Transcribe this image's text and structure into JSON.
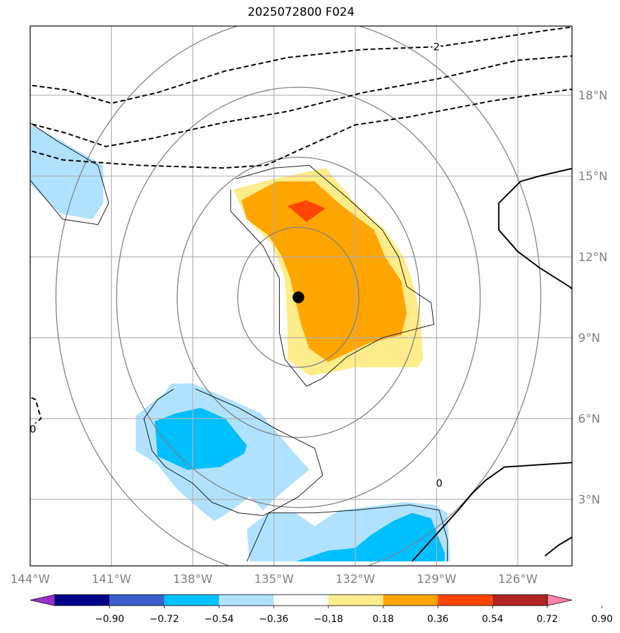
{
  "title": "2025072800 F024",
  "chart_data": {
    "type": "contour-map",
    "title": "2025072800 F024",
    "lon_range": [
      -144,
      -124
    ],
    "lat_range": [
      0.5,
      20.5
    ],
    "x_ticks": [
      {
        "value": -144,
        "label": "144°W"
      },
      {
        "value": -141,
        "label": "141°W"
      },
      {
        "value": -138,
        "label": "138°W"
      },
      {
        "value": -135,
        "label": "135°W"
      },
      {
        "value": -132,
        "label": "132°W"
      },
      {
        "value": -129,
        "label": "129°W"
      },
      {
        "value": -126,
        "label": "126°W"
      }
    ],
    "y_ticks": [
      {
        "value": 3,
        "label": "3°N"
      },
      {
        "value": 6,
        "label": "6°N"
      },
      {
        "value": 9,
        "label": "9°N"
      },
      {
        "value": 12,
        "label": "12°N"
      },
      {
        "value": 15,
        "label": "15°N"
      },
      {
        "value": 18,
        "label": "18°N"
      }
    ],
    "grid": true,
    "colorbar": {
      "placement": "bottom",
      "levels": [
        -0.9,
        -0.72,
        -0.54,
        -0.36,
        -0.18,
        0.18,
        0.36,
        0.54,
        0.72,
        0.9
      ],
      "tick_labels": [
        "−0.90",
        "−0.72",
        "−0.54",
        "−0.36",
        "−0.18",
        "0.18",
        "0.36",
        "0.54",
        "0.72",
        "0.90"
      ],
      "colors": [
        "#9932cc",
        "#00008b",
        "#3a5fcd",
        "#00bfff",
        "#b0e2ff",
        "#ffffff",
        "#ffec8b",
        "#ffa500",
        "#ff4500",
        "#b22222",
        "#ff82ab"
      ],
      "extend": "both"
    },
    "center_marker": {
      "lon": -134.1,
      "lat": 10.5
    },
    "range_rings_deg": [
      2.5,
      5,
      7.5,
      10
    ],
    "contour_labels": [
      {
        "text": "2",
        "lon": -129.0,
        "lat": 19.8
      },
      {
        "text": "0",
        "lon": -128.9,
        "lat": 3.6
      },
      {
        "text": "0",
        "lon": -143.9,
        "lat": 5.6
      }
    ],
    "shaded_regions": [
      {
        "level": 0.18,
        "color": "#ffec8b",
        "pts": [
          [
            -135.0,
            14.9
          ],
          [
            -133.1,
            15.3
          ],
          [
            -132.0,
            14.0
          ],
          [
            -130.9,
            13.0
          ],
          [
            -130.2,
            12.0
          ],
          [
            -129.9,
            11.1
          ],
          [
            -129.6,
            9.9
          ],
          [
            -129.5,
            8.2
          ],
          [
            -129.7,
            7.9
          ],
          [
            -132.0,
            7.9
          ],
          [
            -133.0,
            7.7
          ],
          [
            -133.7,
            7.6
          ],
          [
            -134.5,
            8.2
          ],
          [
            -134.5,
            9.5
          ],
          [
            -134.6,
            11.2
          ],
          [
            -135.1,
            12.5
          ],
          [
            -136.0,
            13.4
          ],
          [
            -136.5,
            14.5
          ]
        ]
      },
      {
        "level": 0.36,
        "color": "#ffa500",
        "pts": [
          [
            -134.9,
            14.8
          ],
          [
            -133.5,
            14.8
          ],
          [
            -132.5,
            13.9
          ],
          [
            -131.3,
            13.0
          ],
          [
            -130.9,
            12.0
          ],
          [
            -130.3,
            11.1
          ],
          [
            -130.1,
            9.9
          ],
          [
            -130.3,
            9.1
          ],
          [
            -131.5,
            8.8
          ],
          [
            -133.0,
            8.1
          ],
          [
            -133.7,
            8.6
          ],
          [
            -134.0,
            9.5
          ],
          [
            -134.4,
            11.2
          ],
          [
            -134.7,
            12.0
          ],
          [
            -135.2,
            12.8
          ],
          [
            -136.0,
            13.4
          ],
          [
            -136.2,
            14.1
          ]
        ]
      },
      {
        "level": 0.54,
        "color": "#ff4500",
        "pts": [
          [
            -134.5,
            13.9
          ],
          [
            -133.8,
            14.1
          ],
          [
            -133.1,
            13.8
          ],
          [
            -133.8,
            13.3
          ]
        ]
      },
      {
        "level": -0.18,
        "color": "#b0e2ff",
        "pts": [
          [
            -144.2,
            17.0
          ],
          [
            -143.2,
            16.5
          ],
          [
            -141.3,
            15.4
          ],
          [
            -141.3,
            14.0
          ],
          [
            -141.7,
            13.4
          ],
          [
            -142.9,
            13.6
          ],
          [
            -144.2,
            14.9
          ]
        ]
      },
      {
        "level": -0.18,
        "color": "#b0e2ff",
        "pts": [
          [
            -138.0,
            7.3
          ],
          [
            -136.6,
            6.7
          ],
          [
            -135.5,
            6.2
          ],
          [
            -134.4,
            4.9
          ],
          [
            -133.7,
            4.1
          ],
          [
            -134.3,
            3.6
          ],
          [
            -135.0,
            3.0
          ],
          [
            -135.4,
            2.6
          ],
          [
            -135.9,
            3.1
          ],
          [
            -136.7,
            2.5
          ],
          [
            -137.2,
            2.2
          ],
          [
            -137.7,
            2.6
          ],
          [
            -138.6,
            3.4
          ],
          [
            -139.3,
            4.3
          ],
          [
            -140.1,
            4.8
          ],
          [
            -140.1,
            6.1
          ],
          [
            -139.0,
            7.0
          ],
          [
            -138.8,
            7.3
          ]
        ]
      },
      {
        "level": -0.36,
        "color": "#00bfff",
        "pts": [
          [
            -137.7,
            6.4
          ],
          [
            -136.8,
            6.0
          ],
          [
            -136.0,
            5.0
          ],
          [
            -136.1,
            4.7
          ],
          [
            -137.0,
            4.2
          ],
          [
            -138.2,
            4.1
          ],
          [
            -139.3,
            4.6
          ],
          [
            -139.4,
            5.9
          ],
          [
            -138.6,
            6.2
          ]
        ]
      },
      {
        "level": -0.18,
        "color": "#b0e2ff",
        "pts": [
          [
            -135.2,
            2.5
          ],
          [
            -134.2,
            2.5
          ],
          [
            -133.5,
            2.0
          ],
          [
            -132.6,
            2.6
          ],
          [
            -131.7,
            2.7
          ],
          [
            -130.2,
            2.9
          ],
          [
            -129.1,
            2.8
          ],
          [
            -128.6,
            2.5
          ],
          [
            -128.5,
            0.7
          ],
          [
            -135.9,
            0.7
          ],
          [
            -136.0,
            1.9
          ]
        ]
      },
      {
        "level": -0.36,
        "color": "#00bfff",
        "pts": [
          [
            -129.9,
            2.5
          ],
          [
            -129.2,
            2.3
          ],
          [
            -128.7,
            1.0
          ],
          [
            -128.7,
            0.7
          ],
          [
            -134.2,
            0.7
          ],
          [
            -133.0,
            1.1
          ],
          [
            -132.0,
            1.2
          ],
          [
            -131.4,
            1.7
          ],
          [
            -130.6,
            2.2
          ]
        ]
      }
    ],
    "contours_thin": [
      [
        [
          -144.2,
          17.1
        ],
        [
          -143.0,
          16.3
        ],
        [
          -141.5,
          15.4
        ],
        [
          -141.1,
          14.0
        ],
        [
          -141.5,
          13.2
        ],
        [
          -142.8,
          13.4
        ],
        [
          -144.2,
          15.1
        ]
      ],
      [
        [
          -136.4,
          14.9
        ],
        [
          -135.0,
          15.3
        ],
        [
          -133.7,
          15.4
        ],
        [
          -132.3,
          14.2
        ],
        [
          -131.0,
          13.0
        ],
        [
          -130.4,
          12.0
        ],
        [
          -130.1,
          10.9
        ],
        [
          -129.2,
          10.3
        ],
        [
          -129.1,
          9.5
        ],
        [
          -131.0,
          9.0
        ],
        [
          -132.3,
          8.3
        ],
        [
          -133.2,
          7.5
        ],
        [
          -133.8,
          7.2
        ],
        [
          -134.6,
          8.2
        ],
        [
          -134.8,
          9.2
        ],
        [
          -134.8,
          11.2
        ],
        [
          -135.4,
          12.4
        ],
        [
          -136.6,
          13.7
        ],
        [
          -136.6,
          14.5
        ]
      ],
      [
        [
          -137.9,
          7.1
        ],
        [
          -136.3,
          6.4
        ],
        [
          -134.9,
          5.6
        ],
        [
          -133.5,
          4.9
        ],
        [
          -133.2,
          3.9
        ],
        [
          -134.1,
          3.1
        ],
        [
          -135.0,
          2.6
        ],
        [
          -135.4,
          2.4
        ],
        [
          -136.3,
          2.5
        ],
        [
          -137.3,
          2.9
        ],
        [
          -138.0,
          3.6
        ],
        [
          -139.0,
          4.2
        ],
        [
          -139.5,
          4.8
        ],
        [
          -139.8,
          6.0
        ],
        [
          -139.3,
          6.7
        ],
        [
          -138.7,
          7.1
        ]
      ],
      [
        [
          -136.0,
          0.7
        ],
        [
          -135.2,
          2.5
        ],
        [
          -133.5,
          2.5
        ],
        [
          -132.0,
          2.6
        ],
        [
          -130.0,
          2.8
        ],
        [
          -128.9,
          2.6
        ],
        [
          -128.6,
          1.5
        ],
        [
          -128.6,
          0.7
        ]
      ]
    ],
    "contours_dashed": [
      [
        [
          -144.2,
          18.4
        ],
        [
          -142.7,
          18.2
        ],
        [
          -141.0,
          17.7
        ],
        [
          -139.3,
          18.1
        ],
        [
          -136.8,
          18.9
        ],
        [
          -134.5,
          19.4
        ],
        [
          -131.7,
          19.7
        ],
        [
          -129.0,
          19.8
        ],
        [
          -127.6,
          20.0
        ],
        [
          -125.0,
          20.4
        ],
        [
          -123.5,
          20.6
        ]
      ],
      [
        [
          -144.2,
          17.0
        ],
        [
          -142.7,
          16.6
        ],
        [
          -141.2,
          16.1
        ],
        [
          -139.5,
          16.4
        ],
        [
          -136.8,
          17.0
        ],
        [
          -134.5,
          17.4
        ],
        [
          -131.7,
          18.1
        ],
        [
          -129.0,
          18.6
        ],
        [
          -126.0,
          19.3
        ],
        [
          -123.5,
          19.5
        ]
      ],
      [
        [
          -144.2,
          16.0
        ],
        [
          -142.8,
          15.6
        ],
        [
          -140.0,
          15.4
        ],
        [
          -136.9,
          15.3
        ],
        [
          -135.3,
          15.4
        ],
        [
          -134.0,
          16.0
        ],
        [
          -132.0,
          16.9
        ],
        [
          -130.0,
          17.2
        ],
        [
          -126.9,
          17.8
        ],
        [
          -123.5,
          18.3
        ]
      ],
      [
        [
          -144.2,
          6.9
        ],
        [
          -143.8,
          6.7
        ],
        [
          -143.6,
          6.0
        ],
        [
          -144.2,
          5.5
        ]
      ]
    ],
    "contours_thick": [
      [
        [
          -123.5,
          15.4
        ],
        [
          -125.2,
          15.0
        ],
        [
          -125.9,
          14.8
        ],
        [
          -126.7,
          14.0
        ],
        [
          -126.7,
          13.0
        ],
        [
          -126.0,
          12.2
        ],
        [
          -125.2,
          11.6
        ],
        [
          -124.1,
          10.9
        ],
        [
          -123.5,
          10.4
        ]
      ],
      [
        [
          -129.9,
          0.7
        ],
        [
          -129.1,
          1.6
        ],
        [
          -128.2,
          2.6
        ],
        [
          -127.7,
          3.2
        ],
        [
          -127.2,
          3.7
        ],
        [
          -126.5,
          4.2
        ],
        [
          -125.0,
          4.3
        ],
        [
          -123.5,
          4.4
        ]
      ],
      [
        [
          -125.0,
          0.9
        ],
        [
          -124.5,
          1.3
        ],
        [
          -124.0,
          1.6
        ],
        [
          -123.5,
          1.7
        ]
      ]
    ]
  }
}
